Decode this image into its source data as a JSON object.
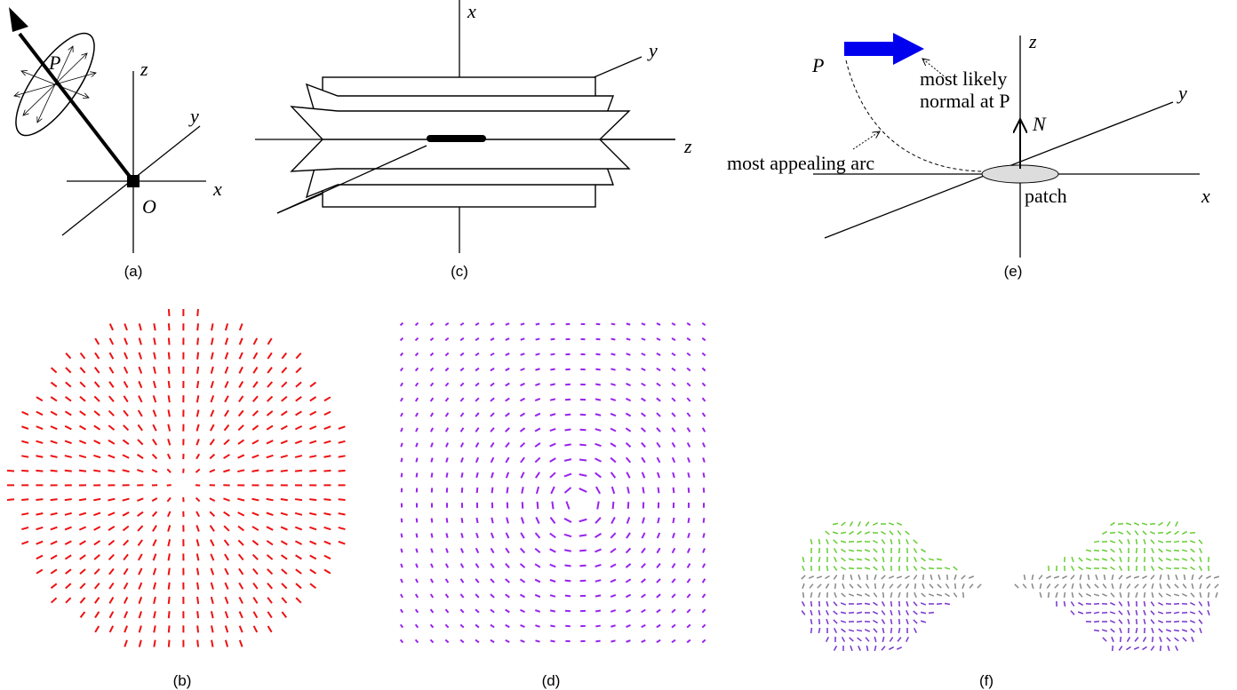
{
  "panels": {
    "a": {
      "label": "(a)",
      "P": "P",
      "z": "z",
      "y": "y",
      "x": "x",
      "O": "O"
    },
    "b": {
      "label": "(b)"
    },
    "c": {
      "label": "(c)",
      "x": "x",
      "y": "y",
      "z": "z"
    },
    "d": {
      "label": "(d)"
    },
    "e": {
      "label": "(e)",
      "P": "P",
      "z": "z",
      "y": "y",
      "x": "x",
      "N": "N",
      "most_likely": "most likely",
      "normal_at_p": "normal at P",
      "arc": "most appealing arc",
      "patch": "patch"
    },
    "f": {
      "label": "(f)"
    }
  }
}
